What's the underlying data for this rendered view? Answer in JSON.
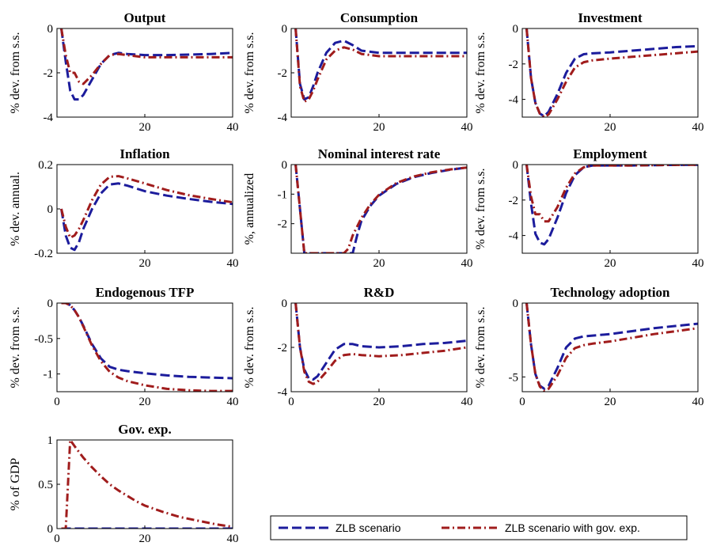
{
  "colors": {
    "zlb": "#1c1c9c",
    "zlb_gov": "#a01c1c",
    "axis": "#000000"
  },
  "legend": {
    "items": [
      {
        "label": "ZLB scenario",
        "color": "#1c1c9c",
        "dash": "dashed"
      },
      {
        "label": "ZLB scenario with gov. exp.",
        "color": "#a01c1c",
        "dash": "dash-dot"
      }
    ]
  },
  "chart_data": [
    {
      "type": "line",
      "title": "Output",
      "ylabel": "% dev. from s.s.",
      "xlim": [
        0,
        40
      ],
      "ylim": [
        -4,
        0
      ],
      "xticks": [
        "20",
        "40"
      ],
      "yticks": [
        "0",
        "-2",
        "-4"
      ],
      "series": [
        {
          "name": "ZLB scenario",
          "x": [
            1,
            2,
            3,
            4,
            5,
            6,
            8,
            10,
            12,
            14,
            16,
            20,
            25,
            30,
            35,
            40
          ],
          "y": [
            0,
            -1.5,
            -2.8,
            -3.2,
            -3.2,
            -3.0,
            -2.3,
            -1.6,
            -1.2,
            -1.1,
            -1.15,
            -1.2,
            -1.2,
            -1.18,
            -1.15,
            -1.1
          ]
        },
        {
          "name": "ZLB scenario with gov. exp.",
          "x": [
            1,
            2,
            3,
            4,
            5,
            6,
            8,
            10,
            12,
            14,
            16,
            20,
            25,
            30,
            35,
            40
          ],
          "y": [
            0,
            -1.2,
            -2.0,
            -2.0,
            -2.4,
            -2.5,
            -2.1,
            -1.6,
            -1.2,
            -1.15,
            -1.2,
            -1.3,
            -1.3,
            -1.3,
            -1.3,
            -1.3
          ]
        }
      ]
    },
    {
      "type": "line",
      "title": "Consumption",
      "ylabel": "% dev. from s.s.",
      "xlim": [
        0,
        40
      ],
      "ylim": [
        -4,
        0
      ],
      "xticks": [
        "20",
        "40"
      ],
      "yticks": [
        "0",
        "-2",
        "-4"
      ],
      "series": [
        {
          "name": "ZLB scenario",
          "x": [
            1,
            2,
            3,
            4,
            5,
            6,
            8,
            10,
            12,
            14,
            16,
            20,
            25,
            30,
            35,
            40
          ],
          "y": [
            0,
            -2.5,
            -3.2,
            -3.1,
            -2.6,
            -2.0,
            -1.1,
            -0.65,
            -0.55,
            -0.75,
            -1.0,
            -1.1,
            -1.1,
            -1.1,
            -1.1,
            -1.1
          ]
        },
        {
          "name": "ZLB scenario with gov. exp.",
          "x": [
            1,
            2,
            3,
            4,
            5,
            6,
            8,
            10,
            12,
            14,
            16,
            20,
            25,
            30,
            35,
            40
          ],
          "y": [
            0,
            -2.6,
            -3.3,
            -3.2,
            -2.8,
            -2.3,
            -1.4,
            -1.0,
            -0.85,
            -0.95,
            -1.15,
            -1.25,
            -1.25,
            -1.25,
            -1.25,
            -1.25
          ]
        }
      ]
    },
    {
      "type": "line",
      "title": "Investment",
      "ylabel": "% dev. from s.s.",
      "xlim": [
        0,
        40
      ],
      "ylim": [
        -5,
        0
      ],
      "xticks": [
        "20",
        "40"
      ],
      "yticks": [
        "0",
        "-2",
        "-4"
      ],
      "series": [
        {
          "name": "ZLB scenario",
          "x": [
            1,
            2,
            3,
            4,
            5,
            6,
            8,
            10,
            12,
            14,
            16,
            20,
            25,
            30,
            35,
            40
          ],
          "y": [
            0,
            -2.8,
            -4.2,
            -4.8,
            -4.95,
            -4.7,
            -3.7,
            -2.5,
            -1.7,
            -1.45,
            -1.4,
            -1.35,
            -1.25,
            -1.15,
            -1.05,
            -1.0
          ]
        },
        {
          "name": "ZLB scenario with gov. exp.",
          "x": [
            1,
            2,
            3,
            4,
            5,
            6,
            8,
            10,
            12,
            14,
            16,
            20,
            25,
            30,
            35,
            40
          ],
          "y": [
            0,
            -2.8,
            -4.2,
            -4.8,
            -5.0,
            -4.85,
            -4.0,
            -3.0,
            -2.2,
            -1.9,
            -1.8,
            -1.7,
            -1.6,
            -1.5,
            -1.4,
            -1.3
          ]
        }
      ]
    },
    {
      "type": "line",
      "title": "Inflation",
      "ylabel": "% dev. annual.",
      "xlim": [
        0,
        40
      ],
      "ylim": [
        -0.2,
        0.2
      ],
      "xticks": [
        "20",
        "40"
      ],
      "yticks": [
        "0.2",
        "0",
        "-0.2"
      ],
      "series": [
        {
          "name": "ZLB scenario",
          "x": [
            1,
            2,
            3,
            4,
            5,
            6,
            8,
            10,
            12,
            14,
            16,
            20,
            25,
            30,
            35,
            40
          ],
          "y": [
            0,
            -0.12,
            -0.175,
            -0.185,
            -0.15,
            -0.09,
            0.0,
            0.07,
            0.11,
            0.115,
            0.105,
            0.08,
            0.06,
            0.045,
            0.032,
            0.022
          ]
        },
        {
          "name": "ZLB scenario with gov. exp.",
          "x": [
            1,
            2,
            3,
            4,
            5,
            6,
            8,
            10,
            12,
            14,
            16,
            20,
            25,
            30,
            35,
            40
          ],
          "y": [
            0,
            -0.08,
            -0.13,
            -0.12,
            -0.09,
            -0.05,
            0.04,
            0.11,
            0.145,
            0.148,
            0.138,
            0.115,
            0.085,
            0.062,
            0.045,
            0.03
          ]
        }
      ]
    },
    {
      "type": "line",
      "title": "Nominal interest rate",
      "ylabel": "%, annualized",
      "xlim": [
        0,
        40
      ],
      "ylim": [
        -3,
        0
      ],
      "xticks": [
        "20",
        "40"
      ],
      "yticks": [
        "0",
        "-1",
        "-2"
      ],
      "series": [
        {
          "name": "ZLB scenario",
          "x": [
            1,
            3,
            4,
            6,
            8,
            10,
            12,
            13,
            14,
            15,
            16,
            18,
            20,
            24,
            28,
            32,
            36,
            40
          ],
          "y": [
            0,
            -3,
            -3,
            -3,
            -3,
            -3,
            -3,
            -3,
            -3,
            -2.4,
            -1.9,
            -1.4,
            -1.05,
            -0.65,
            -0.42,
            -0.28,
            -0.18,
            -0.1
          ]
        },
        {
          "name": "ZLB scenario with gov. exp.",
          "x": [
            1,
            3,
            4,
            6,
            8,
            10,
            12,
            13,
            14,
            15,
            16,
            18,
            20,
            24,
            28,
            32,
            36,
            40
          ],
          "y": [
            0,
            -3,
            -3,
            -3,
            -3,
            -3,
            -3,
            -2.85,
            -2.4,
            -2.1,
            -1.8,
            -1.35,
            -1.02,
            -0.62,
            -0.4,
            -0.26,
            -0.17,
            -0.1
          ]
        }
      ]
    },
    {
      "type": "line",
      "title": "Employment",
      "ylabel": "% dev. from s.s.",
      "xlim": [
        0,
        40
      ],
      "ylim": [
        -5,
        0
      ],
      "xticks": [
        "20",
        "40"
      ],
      "yticks": [
        "0",
        "-2",
        "-4"
      ],
      "series": [
        {
          "name": "ZLB scenario",
          "x": [
            1,
            2,
            3,
            4,
            5,
            6,
            8,
            10,
            12,
            14,
            16,
            20,
            25,
            30,
            35,
            40
          ],
          "y": [
            0,
            -2.2,
            -3.9,
            -4.4,
            -4.5,
            -4.2,
            -3.0,
            -1.6,
            -0.6,
            -0.15,
            -0.05,
            -0.05,
            -0.05,
            -0.03,
            -0.02,
            -0.01
          ]
        },
        {
          "name": "ZLB scenario with gov. exp.",
          "x": [
            1,
            2,
            3,
            4,
            5,
            6,
            8,
            10,
            12,
            14,
            16,
            20,
            25,
            30,
            35,
            40
          ],
          "y": [
            0,
            -1.8,
            -2.8,
            -2.8,
            -3.2,
            -3.2,
            -2.4,
            -1.3,
            -0.5,
            -0.15,
            -0.05,
            -0.05,
            -0.05,
            -0.03,
            -0.02,
            -0.01
          ]
        }
      ]
    },
    {
      "type": "line",
      "title": "Endogenous TFP",
      "ylabel": "% dev. from s.s.",
      "xlim": [
        0,
        40
      ],
      "ylim": [
        -1.25,
        0
      ],
      "xticks": [
        "0",
        "20",
        "40"
      ],
      "yticks": [
        "0",
        "-0.5",
        "-1"
      ],
      "series": [
        {
          "name": "ZLB scenario",
          "x": [
            1,
            2,
            3,
            4,
            5,
            6,
            8,
            10,
            12,
            14,
            16,
            20,
            25,
            30,
            35,
            40
          ],
          "y": [
            0,
            0,
            -0.03,
            -0.1,
            -0.2,
            -0.32,
            -0.58,
            -0.78,
            -0.9,
            -0.94,
            -0.96,
            -0.99,
            -1.02,
            -1.04,
            -1.05,
            -1.06
          ]
        },
        {
          "name": "ZLB scenario with gov. exp.",
          "x": [
            1,
            2,
            3,
            4,
            5,
            6,
            8,
            10,
            12,
            14,
            16,
            20,
            25,
            30,
            35,
            40
          ],
          "y": [
            0,
            0,
            -0.03,
            -0.1,
            -0.2,
            -0.33,
            -0.6,
            -0.82,
            -0.97,
            -1.05,
            -1.1,
            -1.16,
            -1.21,
            -1.23,
            -1.24,
            -1.24
          ]
        }
      ]
    },
    {
      "type": "line",
      "title": "R&D",
      "ylabel": "% dev. from s.s.",
      "xlim": [
        0,
        40
      ],
      "ylim": [
        -4,
        0
      ],
      "xticks": [
        "0",
        "20",
        "40"
      ],
      "yticks": [
        "0",
        "-2",
        "-4"
      ],
      "series": [
        {
          "name": "ZLB scenario",
          "x": [
            1,
            2,
            3,
            4,
            5,
            6,
            8,
            10,
            12,
            14,
            16,
            20,
            25,
            30,
            35,
            40
          ],
          "y": [
            0,
            -2.0,
            -3.0,
            -3.4,
            -3.45,
            -3.3,
            -2.7,
            -2.1,
            -1.85,
            -1.85,
            -1.95,
            -2.0,
            -1.95,
            -1.85,
            -1.8,
            -1.7
          ]
        },
        {
          "name": "ZLB scenario with gov. exp.",
          "x": [
            1,
            2,
            3,
            4,
            5,
            6,
            8,
            10,
            12,
            14,
            16,
            20,
            25,
            30,
            35,
            40
          ],
          "y": [
            0,
            -2.0,
            -3.1,
            -3.55,
            -3.65,
            -3.55,
            -3.1,
            -2.6,
            -2.35,
            -2.3,
            -2.35,
            -2.4,
            -2.35,
            -2.25,
            -2.15,
            -2.0
          ]
        }
      ]
    },
    {
      "type": "line",
      "title": "Technology adoption",
      "ylabel": "% dev. from s.s.",
      "xlim": [
        0,
        40
      ],
      "ylim": [
        -6,
        0
      ],
      "xticks": [
        "0",
        "20",
        "40"
      ],
      "yticks": [
        "0",
        "-5"
      ],
      "series": [
        {
          "name": "ZLB scenario",
          "x": [
            1,
            2,
            3,
            4,
            5,
            6,
            8,
            10,
            12,
            14,
            16,
            20,
            25,
            30,
            35,
            40
          ],
          "y": [
            0,
            -2.8,
            -4.8,
            -5.6,
            -5.8,
            -5.6,
            -4.4,
            -3.0,
            -2.4,
            -2.25,
            -2.2,
            -2.1,
            -1.9,
            -1.7,
            -1.55,
            -1.4
          ]
        },
        {
          "name": "ZLB scenario with gov. exp.",
          "x": [
            1,
            2,
            3,
            4,
            5,
            6,
            8,
            10,
            12,
            14,
            16,
            20,
            25,
            30,
            35,
            40
          ],
          "y": [
            0,
            -2.8,
            -4.8,
            -5.65,
            -5.95,
            -5.8,
            -4.9,
            -3.7,
            -3.05,
            -2.85,
            -2.75,
            -2.6,
            -2.35,
            -2.1,
            -1.9,
            -1.7
          ]
        }
      ]
    },
    {
      "type": "line",
      "title": "Gov. exp.",
      "ylabel": "% of GDP",
      "xlim": [
        0,
        40
      ],
      "ylim": [
        0,
        1
      ],
      "xticks": [
        "0",
        "20",
        "40"
      ],
      "yticks": [
        "1",
        "0.5",
        "0"
      ],
      "series": [
        {
          "name": "ZLB scenario",
          "x": [
            1,
            40
          ],
          "y": [
            0,
            0
          ]
        },
        {
          "name": "ZLB scenario with gov. exp.",
          "x": [
            1,
            2,
            3,
            4,
            6,
            8,
            10,
            12,
            14,
            16,
            18,
            20,
            24,
            28,
            32,
            36,
            40
          ],
          "y": [
            0,
            0,
            1.0,
            0.93,
            0.8,
            0.69,
            0.59,
            0.5,
            0.43,
            0.37,
            0.31,
            0.26,
            0.19,
            0.13,
            0.09,
            0.05,
            0.02
          ]
        }
      ]
    }
  ]
}
